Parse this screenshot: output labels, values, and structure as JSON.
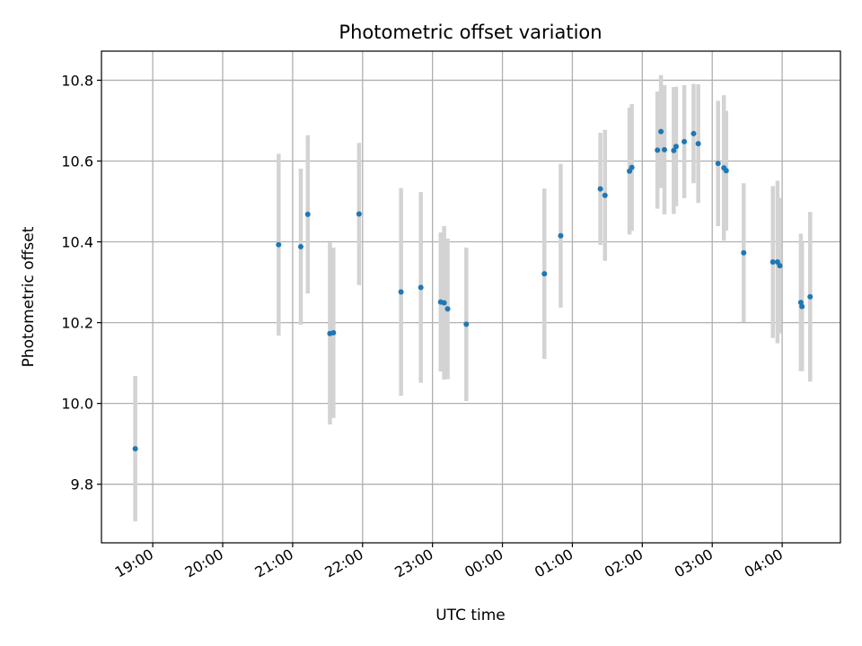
{
  "chart_data": {
    "type": "scatter",
    "title": "Photometric offset variation",
    "xlabel": "UTC time",
    "ylabel": "Photometric offset",
    "xlim": [
      "2000-01-01T18:16",
      "2000-01-02T04:50"
    ],
    "ylim": [
      9.655,
      10.872
    ],
    "grid": true,
    "x_ticks": [
      {
        "t": "2000-01-01T19:00",
        "label": "19:00"
      },
      {
        "t": "2000-01-01T20:00",
        "label": "20:00"
      },
      {
        "t": "2000-01-01T21:00",
        "label": "21:00"
      },
      {
        "t": "2000-01-01T22:00",
        "label": "22:00"
      },
      {
        "t": "2000-01-01T23:00",
        "label": "23:00"
      },
      {
        "t": "2000-01-02T00:00",
        "label": "00:00"
      },
      {
        "t": "2000-01-02T01:00",
        "label": "01:00"
      },
      {
        "t": "2000-01-02T02:00",
        "label": "02:00"
      },
      {
        "t": "2000-01-02T03:00",
        "label": "03:00"
      },
      {
        "t": "2000-01-02T04:00",
        "label": "04:00"
      }
    ],
    "y_ticks": [
      {
        "v": 9.8,
        "label": "9.8"
      },
      {
        "v": 10.0,
        "label": "10.0"
      },
      {
        "v": 10.2,
        "label": "10.2"
      },
      {
        "v": 10.4,
        "label": "10.4"
      },
      {
        "v": 10.6,
        "label": "10.6"
      },
      {
        "v": 10.8,
        "label": "10.8"
      }
    ],
    "colors": {
      "point": "#1f77b4",
      "errorbar": "#d3d3d3"
    },
    "points": [
      {
        "t": "2000-01-01T18:45",
        "y": 9.888,
        "err": 0.18
      },
      {
        "t": "2000-01-01T20:48",
        "y": 10.393,
        "err": 0.225
      },
      {
        "t": "2000-01-01T21:07",
        "y": 10.388,
        "err": 0.193
      },
      {
        "t": "2000-01-01T21:13",
        "y": 10.468,
        "err": 0.196
      },
      {
        "t": "2000-01-01T21:32",
        "y": 10.173,
        "err": 0.225
      },
      {
        "t": "2000-01-01T21:35",
        "y": 10.175,
        "err": 0.211
      },
      {
        "t": "2000-01-01T21:57",
        "y": 10.469,
        "err": 0.176
      },
      {
        "t": "2000-01-01T22:33",
        "y": 10.276,
        "err": 0.257
      },
      {
        "t": "2000-01-01T22:50",
        "y": 10.287,
        "err": 0.236
      },
      {
        "t": "2000-01-01T23:07",
        "y": 10.251,
        "err": 0.172
      },
      {
        "t": "2000-01-01T23:10",
        "y": 10.249,
        "err": 0.19
      },
      {
        "t": "2000-01-01T23:13",
        "y": 10.234,
        "err": 0.174
      },
      {
        "t": "2000-01-01T23:29",
        "y": 10.196,
        "err": 0.19
      },
      {
        "t": "2000-01-02T00:36",
        "y": 10.321,
        "err": 0.211
      },
      {
        "t": "2000-01-02T00:50",
        "y": 10.415,
        "err": 0.178
      },
      {
        "t": "2000-01-02T01:24",
        "y": 10.531,
        "err": 0.139
      },
      {
        "t": "2000-01-02T01:28",
        "y": 10.515,
        "err": 0.162
      },
      {
        "t": "2000-01-02T01:49",
        "y": 10.575,
        "err": 0.157
      },
      {
        "t": "2000-01-02T01:51",
        "y": 10.584,
        "err": 0.157
      },
      {
        "t": "2000-01-02T02:13",
        "y": 10.627,
        "err": 0.145
      },
      {
        "t": "2000-01-02T02:16",
        "y": 10.673,
        "err": 0.14
      },
      {
        "t": "2000-01-02T02:19",
        "y": 10.628,
        "err": 0.16
      },
      {
        "t": "2000-01-02T02:27",
        "y": 10.626,
        "err": 0.157
      },
      {
        "t": "2000-01-02T02:29",
        "y": 10.636,
        "err": 0.148
      },
      {
        "t": "2000-01-02T02:36",
        "y": 10.648,
        "err": 0.14
      },
      {
        "t": "2000-01-02T02:44",
        "y": 10.668,
        "err": 0.123
      },
      {
        "t": "2000-01-02T02:48",
        "y": 10.643,
        "err": 0.147
      },
      {
        "t": "2000-01-02T03:05",
        "y": 10.594,
        "err": 0.155
      },
      {
        "t": "2000-01-02T03:10",
        "y": 10.583,
        "err": 0.18
      },
      {
        "t": "2000-01-02T03:12",
        "y": 10.576,
        "err": 0.148
      },
      {
        "t": "2000-01-02T03:27",
        "y": 10.373,
        "err": 0.172
      },
      {
        "t": "2000-01-02T03:52",
        "y": 10.35,
        "err": 0.188
      },
      {
        "t": "2000-01-02T03:56",
        "y": 10.35,
        "err": 0.201
      },
      {
        "t": "2000-01-02T03:58",
        "y": 10.341,
        "err": 0.168
      },
      {
        "t": "2000-01-02T04:16",
        "y": 10.25,
        "err": 0.17
      },
      {
        "t": "2000-01-02T04:17",
        "y": 10.24,
        "err": 0.16
      },
      {
        "t": "2000-01-02T04:24",
        "y": 10.264,
        "err": 0.21
      }
    ]
  }
}
